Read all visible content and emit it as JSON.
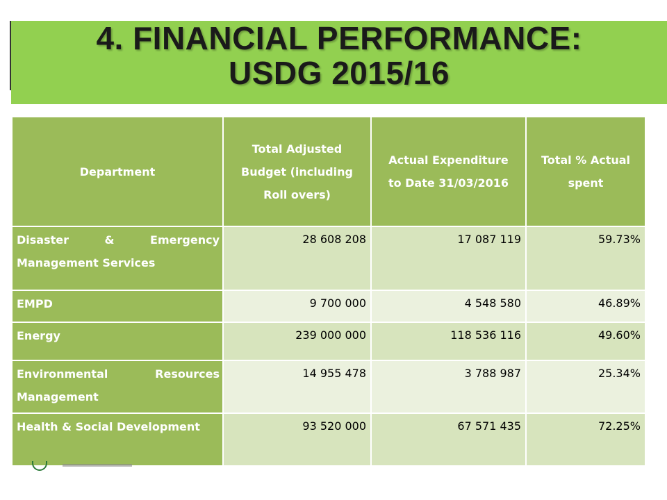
{
  "title": {
    "line1": "4. FINANCIAL PERFORMANCE:",
    "line2": "USDG 2015/16"
  },
  "table": {
    "headers": [
      "Department",
      "Total Adjusted Budget (including Roll overs)",
      "Actual Expenditure to Date 31/03/2016",
      "Total % Actual spent"
    ],
    "rows": [
      {
        "department": "Disaster & Emergency Management Services",
        "budget": "28 608 208",
        "expenditure": "17 087 119",
        "percent": "59.73%"
      },
      {
        "department": "EMPD",
        "budget": "9 700 000",
        "expenditure": "4 548 580",
        "percent": "46.89%"
      },
      {
        "department": "Energy",
        "budget": "239 000 000",
        "expenditure": "118 536 116",
        "percent": "49.60%"
      },
      {
        "department": "Environmental Resources Management",
        "budget": "14 955 478",
        "expenditure": "3 788 987",
        "percent": "25.34%"
      },
      {
        "department": "Health & Social Development",
        "budget": "93 520 000",
        "expenditure": "67 571 435",
        "percent": "72.25%"
      }
    ]
  },
  "colors": {
    "title_background": "#92d050",
    "header_background": "#9bbb59",
    "row_band_dark": "#d7e4bd",
    "row_band_light": "#ebf1de"
  },
  "icons": {
    "footer_logo": "coat-of-arms-seal"
  }
}
